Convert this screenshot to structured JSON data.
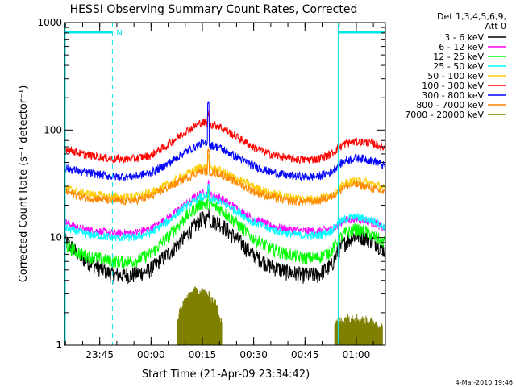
{
  "chart_data": {
    "type": "line",
    "title": "HESSI Observing Summary Count Rates, Corrected",
    "xlabel": "Start Time (21-Apr-09 23:34:42)",
    "ylabel": "Corrected Count Rate (s⁻¹ detector⁻¹)",
    "y_scale": "log",
    "ylim": [
      1,
      1000
    ],
    "xlim_minutes_from_start": [
      0,
      93.8
    ],
    "x_tick_labels": [
      "23:45",
      "00:00",
      "00:15",
      "00:30",
      "00:45",
      "01:00"
    ],
    "x_tick_minutes": [
      10.3,
      25.3,
      40.3,
      55.3,
      70.3,
      85.3
    ],
    "y_tick_labels": [
      "1",
      "10",
      "100",
      "1000"
    ],
    "y_tick_values": [
      1,
      10,
      100,
      1000
    ],
    "grid": false,
    "legend_header": [
      "Det 1,3,4,5,6,9,",
      "Att 0"
    ],
    "legend_position": "right",
    "annotations": {
      "night_marker": "N",
      "night_intervals_minutes": [
        [
          0,
          14
        ],
        [
          80,
          93.8
        ]
      ]
    },
    "footer_date": "4-Mar-2010 19:46",
    "series": [
      {
        "name": "3 - 6 keV",
        "color": "#000000",
        "x": [
          0,
          5,
          14,
          20,
          25,
          30,
          35,
          40,
          45,
          50,
          55,
          60,
          65,
          70,
          74,
          78,
          80,
          82,
          85,
          88,
          91,
          93.8
        ],
        "y": [
          9.5,
          6.5,
          4.5,
          4.5,
          5,
          7,
          10,
          15,
          14,
          10,
          7,
          5.5,
          4.8,
          4.5,
          4.5,
          5.5,
          7.5,
          9,
          10.5,
          10,
          9,
          7.5
        ]
      },
      {
        "name": "6 - 12 keV",
        "color": "#ff00ff",
        "x": [
          0,
          5,
          14,
          20,
          25,
          30,
          35,
          40,
          45,
          50,
          55,
          60,
          65,
          70,
          74,
          78,
          80,
          82,
          85,
          88,
          91,
          93.8
        ],
        "y": [
          14,
          12,
          11,
          11,
          12,
          15,
          20,
          26,
          24,
          19,
          15,
          13,
          12,
          11.5,
          11.5,
          12,
          13,
          14.5,
          15,
          14.5,
          13.5,
          12
        ]
      },
      {
        "name": "12 - 25 keV",
        "color": "#00ff00",
        "x": [
          0,
          5,
          14,
          20,
          25,
          30,
          35,
          40,
          45,
          50,
          55,
          60,
          65,
          70,
          74,
          78,
          80,
          82,
          85,
          88,
          91,
          93.8
        ],
        "y": [
          8.5,
          7,
          6,
          6,
          7,
          10,
          15,
          21,
          19,
          14,
          10,
          8,
          7,
          6.5,
          6.5,
          7.5,
          9.5,
          11,
          12,
          11.5,
          10,
          9
        ]
      },
      {
        "name": "25 - 50 keV",
        "color": "#00ffff",
        "x": [
          0,
          5,
          14,
          20,
          25,
          30,
          35,
          40,
          45,
          50,
          55,
          60,
          65,
          70,
          74,
          78,
          80,
          82,
          85,
          88,
          91,
          93.8
        ],
        "y": [
          12.5,
          11,
          10,
          10,
          11,
          14,
          19,
          24,
          22,
          18,
          14,
          12,
          11,
          10.5,
          10.5,
          11.5,
          13.5,
          15,
          15.5,
          15,
          14,
          12.5
        ]
      },
      {
        "name": "50 - 100 keV",
        "color": "#ffcc00",
        "x": [
          0,
          5,
          14,
          20,
          25,
          30,
          35,
          40,
          45,
          50,
          55,
          60,
          65,
          70,
          74,
          78,
          80,
          82,
          85,
          88,
          91,
          93.8
        ],
        "y": [
          29,
          26,
          24,
          24,
          26,
          31,
          38,
          46,
          43,
          36,
          30,
          26,
          24,
          23,
          23,
          25,
          28,
          32,
          34,
          33,
          31,
          28
        ]
      },
      {
        "name": "100 - 300 keV",
        "color": "#ff0000",
        "x": [
          0,
          5,
          14,
          20,
          25,
          30,
          35,
          40,
          45,
          50,
          55,
          60,
          65,
          70,
          74,
          78,
          80,
          82,
          85,
          88,
          91,
          93.8
        ],
        "y": [
          68,
          60,
          54,
          54,
          58,
          72,
          95,
          118,
          110,
          88,
          70,
          60,
          55,
          53,
          54,
          60,
          68,
          75,
          78,
          77,
          74,
          68
        ]
      },
      {
        "name": "300 - 800 keV",
        "color": "#0000ff",
        "x": [
          0,
          5,
          14,
          20,
          25,
          30,
          35,
          40,
          45,
          50,
          55,
          60,
          65,
          70,
          74,
          78,
          80,
          82,
          85,
          88,
          91,
          93.8
        ],
        "y": [
          45,
          41,
          37,
          37,
          40,
          48,
          62,
          75,
          70,
          57,
          47,
          41,
          38,
          37,
          37,
          41,
          47,
          52,
          55,
          54,
          51,
          46
        ]
      },
      {
        "name": "800 - 7000 keV",
        "color": "#ff8800",
        "x": [
          0,
          5,
          14,
          20,
          25,
          30,
          35,
          40,
          45,
          50,
          55,
          60,
          65,
          70,
          74,
          78,
          80,
          82,
          85,
          88,
          91,
          93.8
        ],
        "y": [
          27,
          24,
          22,
          22,
          24,
          29,
          35,
          42,
          40,
          33,
          27,
          24,
          22,
          21.5,
          22,
          24,
          27,
          30,
          31,
          30,
          28,
          26
        ]
      },
      {
        "name": "7000 - 20000 keV",
        "color": "#808000",
        "segments": [
          {
            "x": [
              33,
              34,
              36,
              38,
              40,
              42,
              44,
              46
            ],
            "y": [
              1.5,
              2,
              2.5,
              2.8,
              2.8,
              2.6,
              2.2,
              1.5
            ]
          },
          {
            "x": [
              79,
              81,
              83,
              85,
              87,
              89,
              91,
              93
            ],
            "y": [
              1.4,
              1.5,
              1.6,
              1.6,
              1.5,
              1.5,
              1.4,
              1.3
            ]
          }
        ]
      }
    ]
  }
}
